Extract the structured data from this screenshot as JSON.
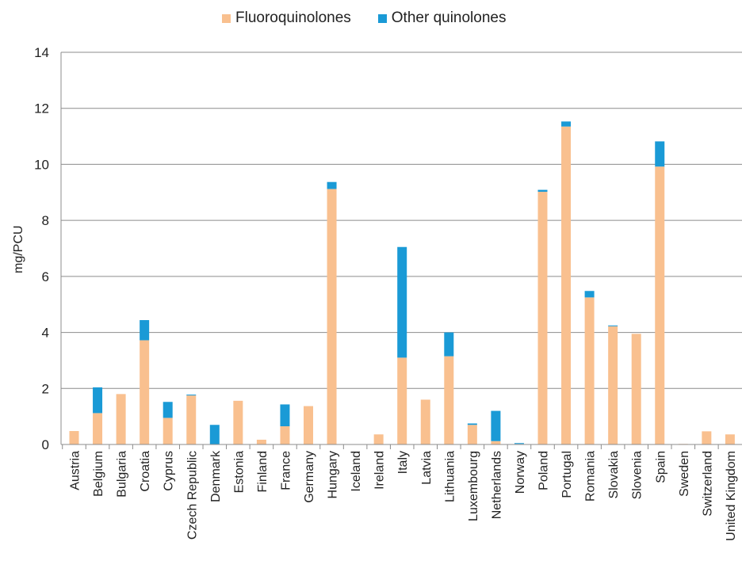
{
  "chart_data": {
    "type": "bar",
    "stacked": true,
    "ylabel": "mg/PCU",
    "ylim": [
      0,
      14
    ],
    "yticks": [
      0,
      2,
      4,
      6,
      8,
      10,
      12,
      14
    ],
    "grid": true,
    "legend_position": "top",
    "categories": [
      "Austria",
      "Belgium",
      "Bulgaria",
      "Croatia",
      "Cyprus",
      "Czech Republic",
      "Denmark",
      "Estonia",
      "Finland",
      "France",
      "Germany",
      "Hungary",
      "Iceland",
      "Ireland",
      "Italy",
      "Latvia",
      "Lithuania",
      "Luxembourg",
      "Netherlands",
      "Norway",
      "Poland",
      "Portugal",
      "Romania",
      "Slovakia",
      "Slovenia",
      "Spain",
      "Sweden",
      "Switzerland",
      "United Kingdom"
    ],
    "series": [
      {
        "name": "Fluoroquinolones",
        "color": "#f9c08f",
        "values": [
          0.48,
          1.12,
          1.8,
          3.72,
          0.95,
          1.75,
          0.0,
          1.56,
          0.17,
          0.65,
          1.37,
          9.12,
          0.0,
          0.36,
          3.1,
          1.6,
          3.15,
          0.7,
          0.12,
          0.02,
          9.02,
          11.35,
          5.25,
          4.22,
          3.95,
          9.92,
          0.02,
          0.47,
          0.36
        ]
      },
      {
        "name": "Other quinolones",
        "color": "#1a9ad6",
        "values": [
          0.0,
          0.92,
          0.0,
          0.72,
          0.57,
          0.03,
          0.7,
          0.0,
          0.0,
          0.78,
          0.0,
          0.25,
          0.0,
          0.0,
          3.95,
          0.0,
          0.85,
          0.05,
          1.08,
          0.03,
          0.07,
          0.18,
          0.23,
          0.03,
          0.0,
          0.9,
          0.0,
          0.0,
          0.0
        ]
      }
    ]
  }
}
